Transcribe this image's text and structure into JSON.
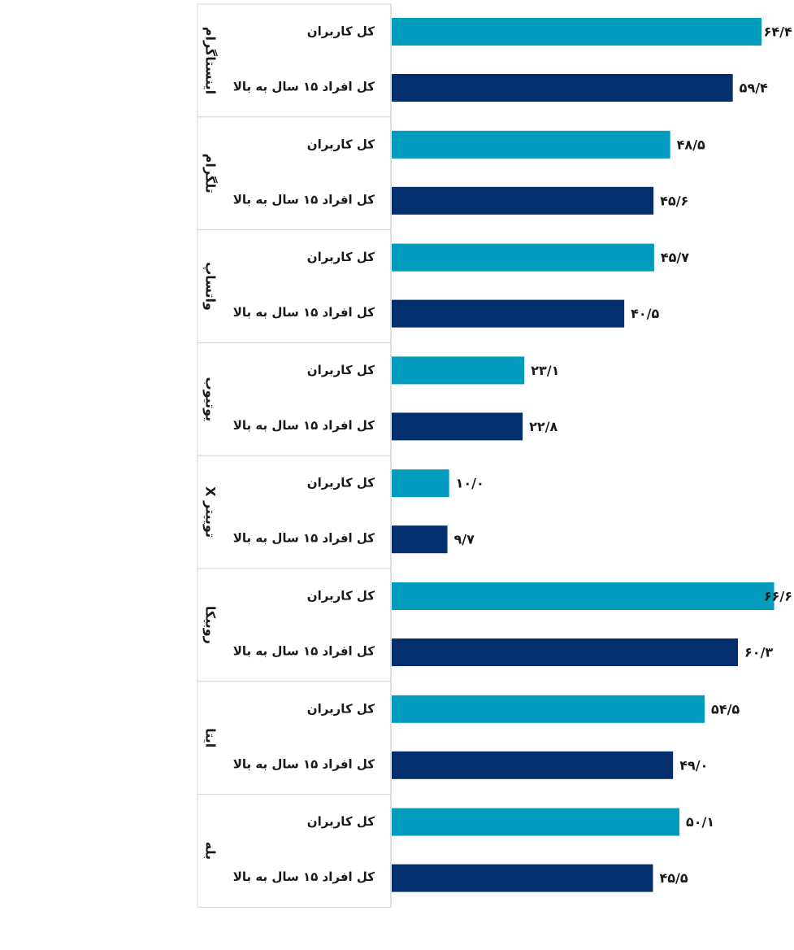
{
  "chart_data": {
    "type": "bar",
    "orientation": "horizontal",
    "groups": [
      "اینستاگرام",
      "تلگرام",
      "واتساپ",
      "یوتیوب",
      "توییتر X",
      "روبیکا",
      "ایتا",
      "بله"
    ],
    "series": [
      {
        "name": "کل کاربران",
        "color": "#009BBD",
        "values": [
          64.4,
          48.5,
          45.7,
          23.1,
          10.0,
          66.6,
          54.5,
          50.1
        ],
        "labels": [
          "۶۴/۴",
          "۴۸/۵",
          "۴۵/۷",
          "۲۳/۱",
          "۱۰/۰",
          "۶۶/۶",
          "۵۴/۵",
          "۵۰/۱"
        ]
      },
      {
        "name": "کل افراد ۱۵ سال به بالا",
        "color": "#032F6E",
        "values": [
          59.4,
          45.6,
          40.5,
          22.8,
          9.7,
          60.3,
          49.0,
          45.5
        ],
        "labels": [
          "۵۹/۴",
          "۴۵/۶",
          "۴۰/۵",
          "۲۲/۸",
          "۹/۷",
          "۶۰/۳",
          "۴۹/۰",
          "۴۵/۵"
        ]
      }
    ],
    "xlim": [
      0,
      70
    ],
    "grid": false,
    "legend": "none"
  }
}
